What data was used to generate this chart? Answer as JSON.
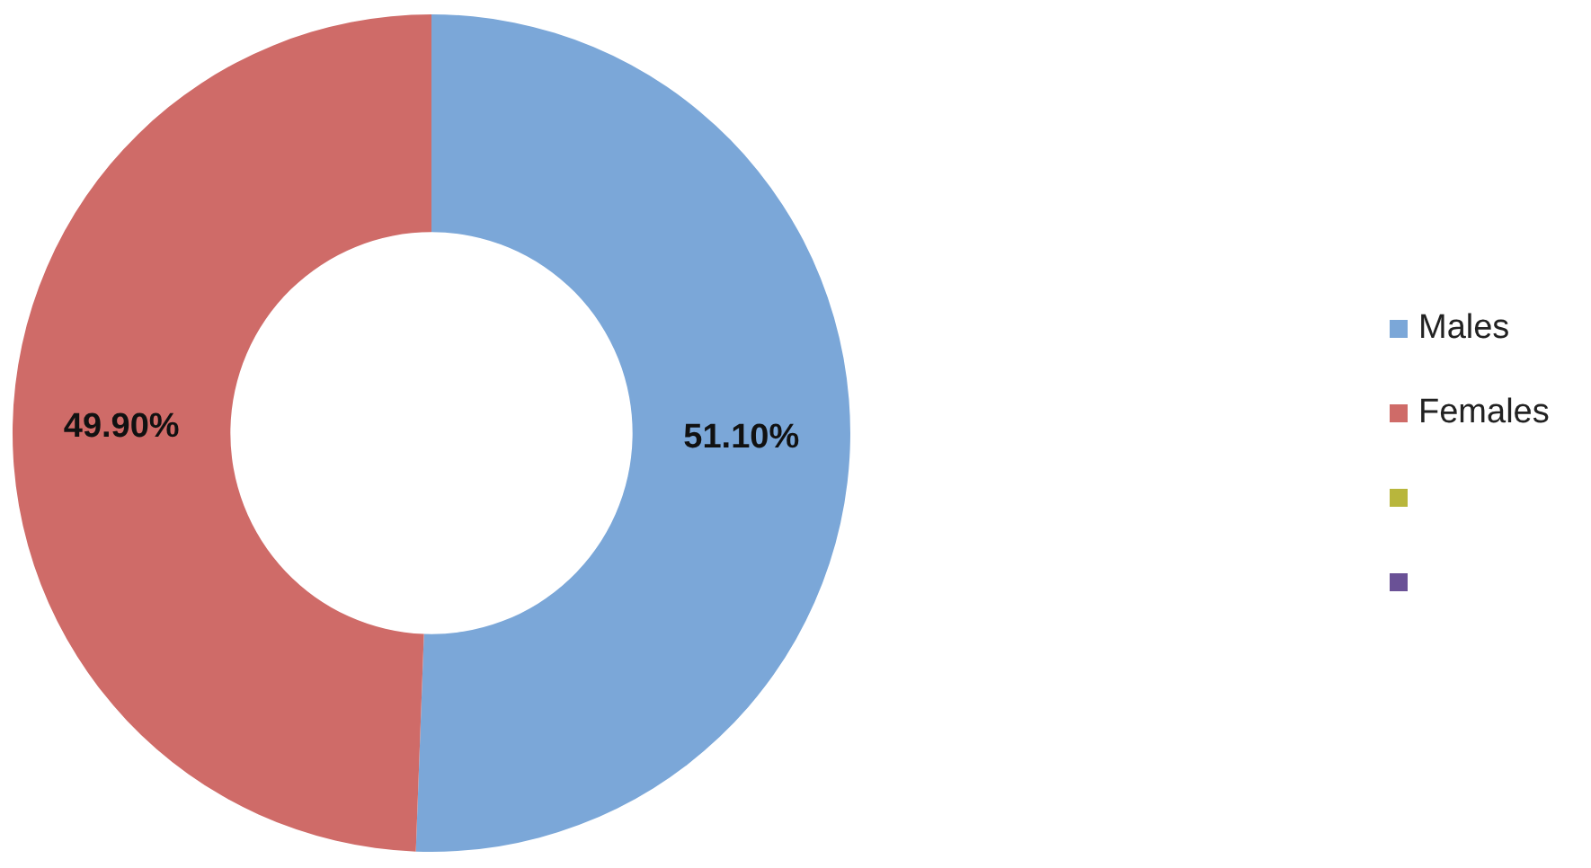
{
  "chart_data": {
    "type": "donut",
    "categories": [
      "Males",
      "Females",
      null,
      null
    ],
    "values": [
      51.1,
      49.9,
      0,
      0
    ],
    "colors": [
      "#7ba7d8",
      "#cf6b68",
      "#b8b63c",
      "#6a5196"
    ],
    "value_labels": [
      "51.10%",
      "49.90%",
      null,
      null
    ],
    "legend": "right"
  }
}
